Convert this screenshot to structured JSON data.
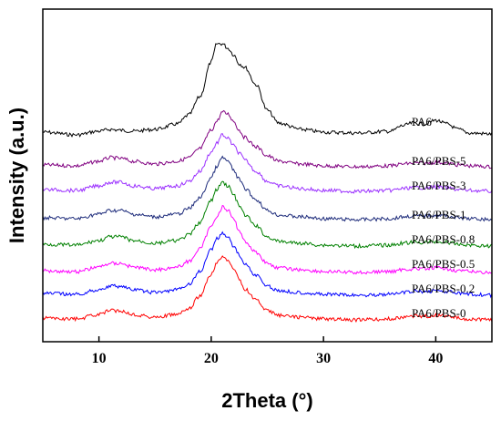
{
  "chart_data": {
    "type": "line",
    "title": "",
    "xlabel": "2Theta (°)",
    "ylabel": "Intensity (a.u.)",
    "xlim": [
      5,
      45
    ],
    "xticks": [
      10,
      20,
      30,
      40
    ],
    "y_ticks_shown": false,
    "grid": false,
    "legend": "labels placed at right end of each curve",
    "x": [
      5,
      8,
      10,
      11,
      12,
      13,
      15,
      17,
      18,
      19,
      20,
      20.5,
      21,
      21.5,
      22,
      22.5,
      23,
      24,
      25,
      26,
      28,
      30,
      33,
      36,
      37,
      38,
      39,
      40,
      41,
      42,
      43,
      45
    ],
    "series": [
      {
        "name": "PA6",
        "color": "#000000",
        "values": [
          0.03,
          0.0,
          0.04,
          0.06,
          0.05,
          0.04,
          0.06,
          0.12,
          0.22,
          0.42,
          0.8,
          1.0,
          1.0,
          0.95,
          0.88,
          0.78,
          0.74,
          0.55,
          0.27,
          0.13,
          0.06,
          0.03,
          0.02,
          0.04,
          0.1,
          0.13,
          0.12,
          0.16,
          0.12,
          0.06,
          0.02,
          0.01
        ]
      },
      {
        "name": "PA6/PBS-5",
        "color": "#800080",
        "values": [
          0.04,
          0.03,
          0.08,
          0.12,
          0.11,
          0.08,
          0.05,
          0.08,
          0.12,
          0.22,
          0.42,
          0.52,
          0.62,
          0.6,
          0.52,
          0.42,
          0.34,
          0.24,
          0.14,
          0.08,
          0.05,
          0.03,
          0.02,
          0.03,
          0.05,
          0.06,
          0.06,
          0.07,
          0.06,
          0.04,
          0.03,
          0.02
        ]
      },
      {
        "name": "PA6/PBS-3",
        "color": "#9b30ff",
        "values": [
          0.04,
          0.03,
          0.08,
          0.12,
          0.12,
          0.08,
          0.05,
          0.08,
          0.13,
          0.24,
          0.45,
          0.55,
          0.64,
          0.6,
          0.52,
          0.44,
          0.36,
          0.24,
          0.13,
          0.08,
          0.05,
          0.03,
          0.02,
          0.03,
          0.05,
          0.06,
          0.06,
          0.07,
          0.06,
          0.04,
          0.03,
          0.02
        ]
      },
      {
        "name": "PA6/PBS-1",
        "color": "#1c2a7a",
        "values": [
          0.04,
          0.03,
          0.08,
          0.12,
          0.12,
          0.08,
          0.05,
          0.08,
          0.14,
          0.26,
          0.48,
          0.6,
          0.7,
          0.66,
          0.56,
          0.46,
          0.36,
          0.24,
          0.12,
          0.07,
          0.05,
          0.03,
          0.02,
          0.03,
          0.05,
          0.06,
          0.06,
          0.07,
          0.06,
          0.04,
          0.03,
          0.02
        ]
      },
      {
        "name": "PA6/PBS-0.8",
        "color": "#008000",
        "values": [
          0.04,
          0.03,
          0.08,
          0.12,
          0.12,
          0.08,
          0.05,
          0.08,
          0.14,
          0.28,
          0.52,
          0.64,
          0.72,
          0.68,
          0.58,
          0.46,
          0.36,
          0.24,
          0.12,
          0.07,
          0.05,
          0.03,
          0.02,
          0.03,
          0.05,
          0.06,
          0.06,
          0.07,
          0.06,
          0.04,
          0.03,
          0.02
        ]
      },
      {
        "name": "PA6/PBS-0.5",
        "color": "#ff00ff",
        "values": [
          0.04,
          0.03,
          0.08,
          0.12,
          0.12,
          0.08,
          0.05,
          0.08,
          0.14,
          0.28,
          0.52,
          0.64,
          0.74,
          0.7,
          0.6,
          0.48,
          0.36,
          0.24,
          0.12,
          0.07,
          0.05,
          0.03,
          0.02,
          0.03,
          0.05,
          0.06,
          0.06,
          0.07,
          0.06,
          0.04,
          0.03,
          0.02
        ]
      },
      {
        "name": "PA6/PBS-0.2",
        "color": "#0000ff",
        "values": [
          0.04,
          0.03,
          0.08,
          0.12,
          0.12,
          0.08,
          0.05,
          0.08,
          0.14,
          0.28,
          0.52,
          0.64,
          0.7,
          0.66,
          0.56,
          0.46,
          0.36,
          0.24,
          0.12,
          0.07,
          0.05,
          0.03,
          0.02,
          0.03,
          0.05,
          0.06,
          0.06,
          0.07,
          0.06,
          0.04,
          0.03,
          0.02
        ]
      },
      {
        "name": "PA6/PBS-0",
        "color": "#ff0000",
        "values": [
          0.04,
          0.03,
          0.08,
          0.12,
          0.12,
          0.08,
          0.05,
          0.08,
          0.14,
          0.28,
          0.52,
          0.64,
          0.72,
          0.68,
          0.58,
          0.46,
          0.36,
          0.24,
          0.12,
          0.07,
          0.05,
          0.03,
          0.02,
          0.03,
          0.05,
          0.06,
          0.06,
          0.07,
          0.06,
          0.04,
          0.03,
          0.02
        ]
      }
    ]
  }
}
